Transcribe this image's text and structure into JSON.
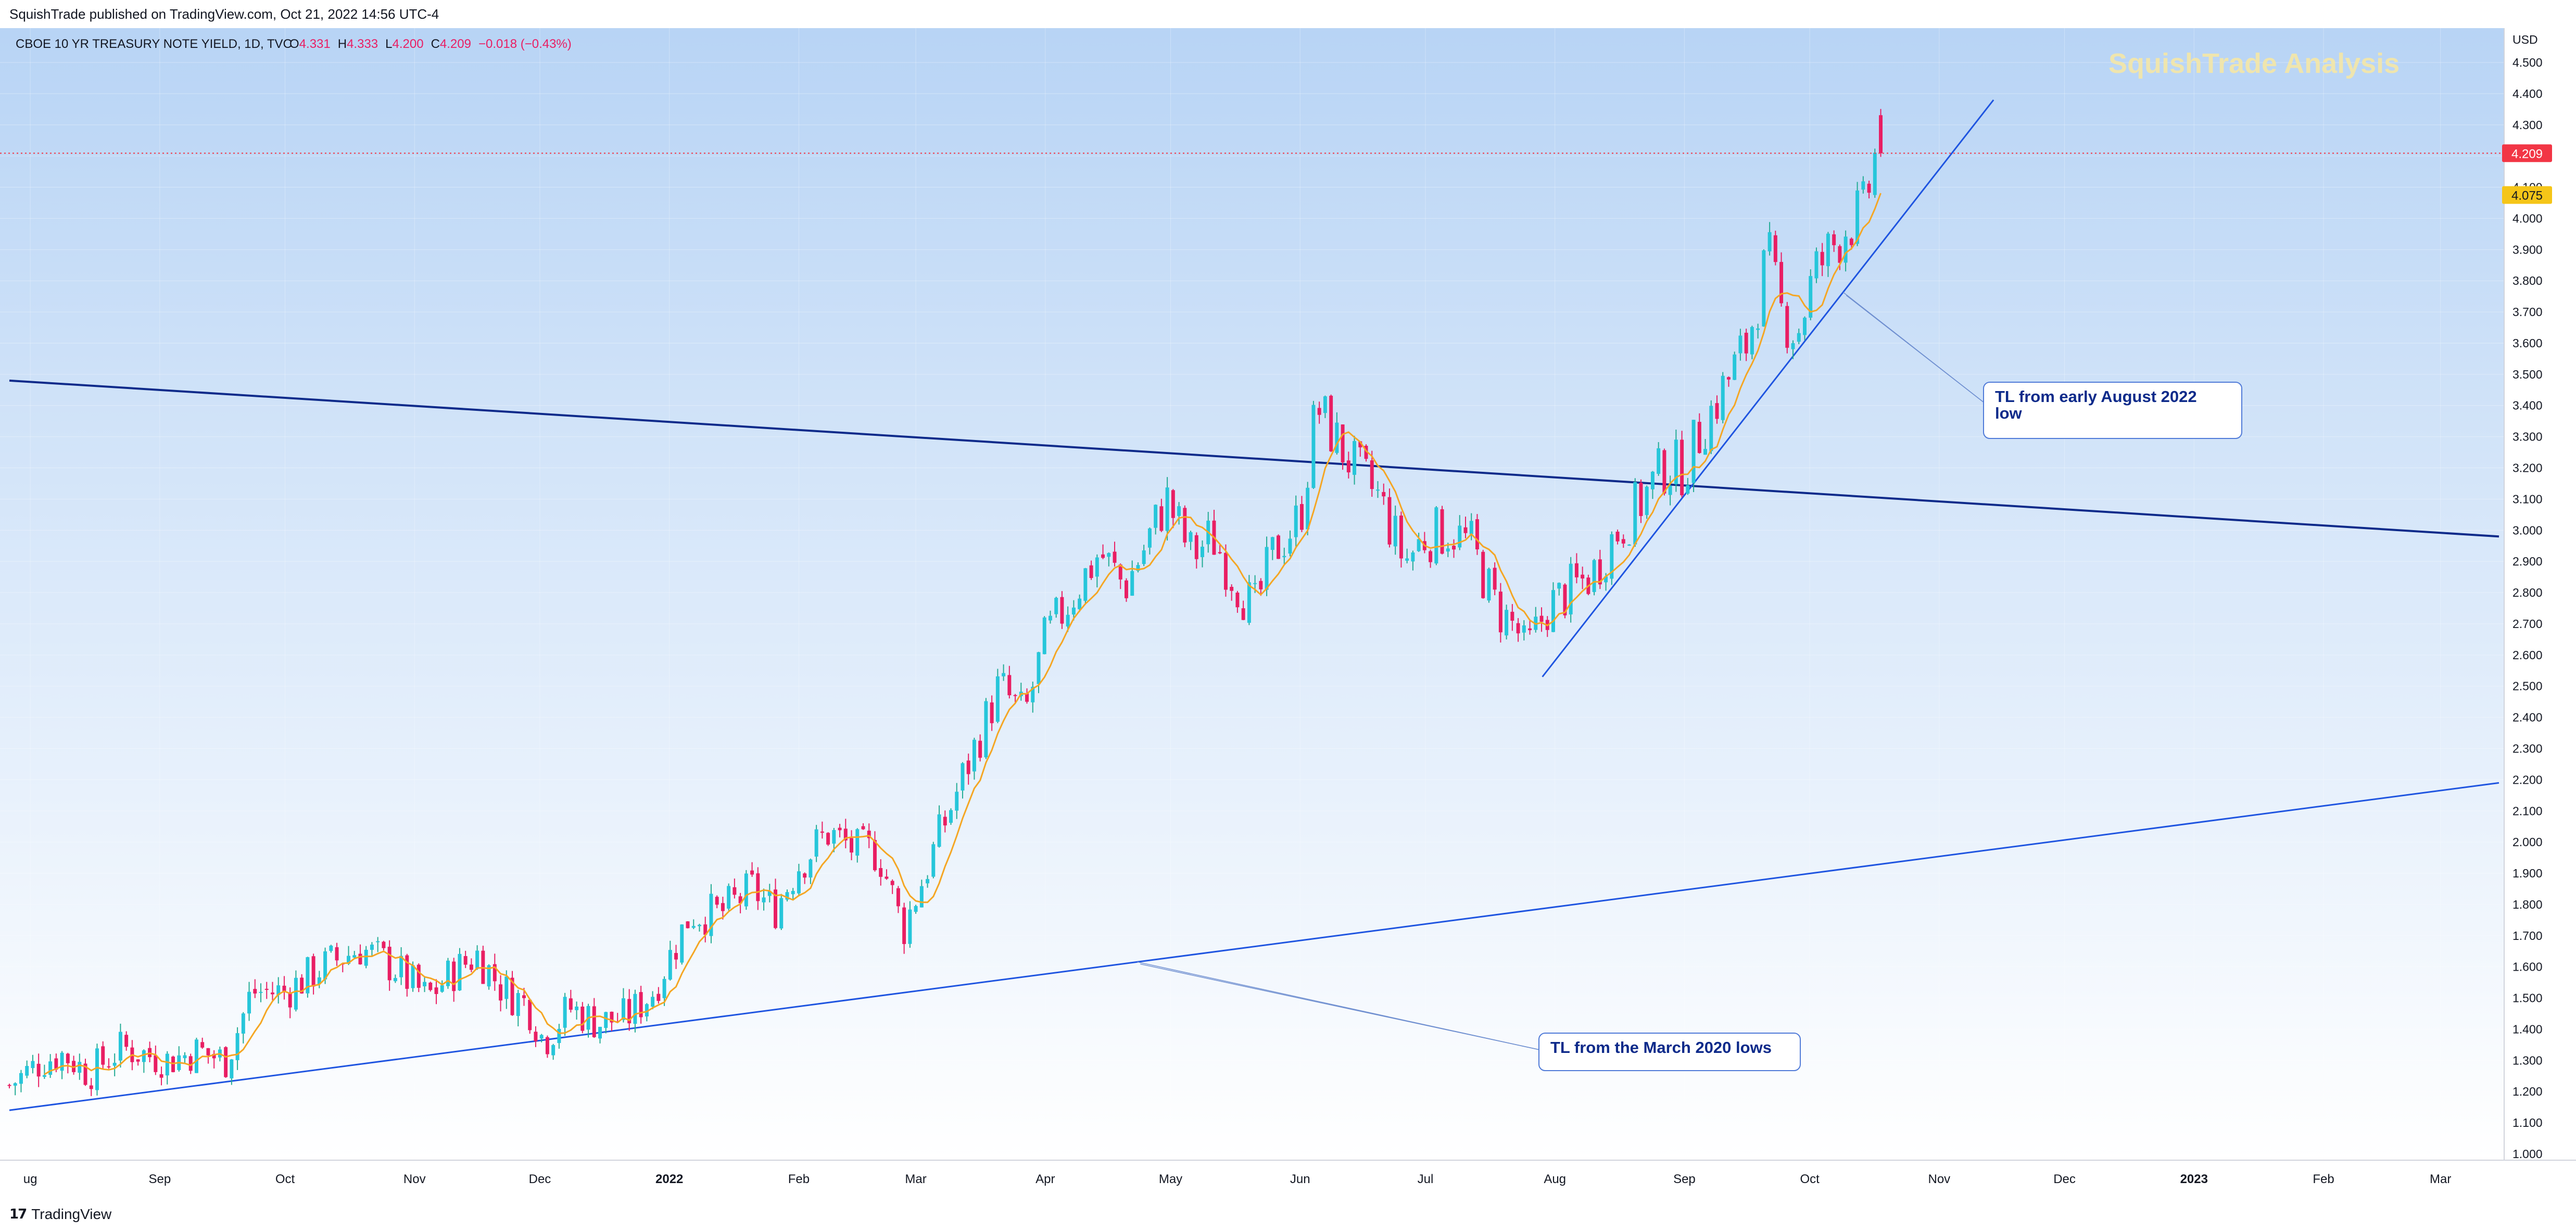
{
  "header": {
    "published": "SquishTrade published on TradingView.com, Oct 21, 2022 14:56 UTC-4"
  },
  "legend": {
    "symbol": "CBOE 10 YR TREASURY NOTE YIELD, 1D, TVC",
    "open_label": "O",
    "open": "4.331",
    "high_label": "H",
    "high": "4.333",
    "low_label": "L",
    "low": "4.200",
    "close_label": "C",
    "close": "4.209",
    "change": "−0.018 (−0.43%)"
  },
  "watermark": "SquishTrade Analysis",
  "annotations": {
    "tl_august": [
      "TL from early August 2022",
      "low"
    ],
    "tl_march": "TL from the March 2020 lows"
  },
  "footer": {
    "brand": "TradingView"
  },
  "colors": {
    "up": "#22ab94",
    "up_fill": "#26c6da",
    "down": "#e91e63",
    "ma": "#f5a623",
    "trendline": "#1e54e0",
    "trendline_dark": "#0d2a8a",
    "price_tag": "#f23645",
    "ma_tag": "#f5c518",
    "bg_top": "#b8d4f5",
    "bg_bottom": "#ffffff"
  },
  "chart_data": {
    "type": "candlestick",
    "title": "CBOE 10 YR TREASURY NOTE YIELD, 1D, TVC",
    "ylabel": "USD",
    "ylim": [
      1.0,
      4.55
    ],
    "y_ticks": [
      "1.000",
      "1.100",
      "1.200",
      "1.300",
      "1.400",
      "1.500",
      "1.600",
      "1.700",
      "1.800",
      "1.900",
      "2.000",
      "2.100",
      "2.200",
      "2.300",
      "2.400",
      "2.500",
      "2.600",
      "2.700",
      "2.800",
      "2.900",
      "3.000",
      "3.100",
      "3.200",
      "3.300",
      "3.400",
      "3.500",
      "3.600",
      "3.700",
      "3.800",
      "3.900",
      "4.000",
      "4.100",
      "4.200",
      "4.300",
      "4.400",
      "4.500"
    ],
    "x_labels": [
      "ug",
      "Sep",
      "Oct",
      "Nov",
      "Dec",
      "2022",
      "Feb",
      "Mar",
      "Apr",
      "May",
      "Jun",
      "Jul",
      "Aug",
      "Sep",
      "Oct",
      "Nov",
      "Dec",
      "2023",
      "Feb",
      "Mar"
    ],
    "x_label_days": [
      5,
      36,
      66,
      97,
      127,
      158,
      189,
      217,
      248,
      278,
      309,
      339,
      370,
      401,
      431,
      462,
      492,
      523,
      554,
      582
    ],
    "x_range": [
      0,
      596
    ],
    "last_price": 4.209,
    "ma_last": 4.075,
    "series_anchors": [
      {
        "d": 0,
        "v": 1.22
      },
      {
        "d": 8,
        "v": 1.3
      },
      {
        "d": 13,
        "v": 1.32
      },
      {
        "d": 19,
        "v": 1.26
      },
      {
        "d": 27,
        "v": 1.34
      },
      {
        "d": 38,
        "v": 1.3
      },
      {
        "d": 45,
        "v": 1.33
      },
      {
        "d": 52,
        "v": 1.3
      },
      {
        "d": 58,
        "v": 1.52
      },
      {
        "d": 66,
        "v": 1.52
      },
      {
        "d": 75,
        "v": 1.6
      },
      {
        "d": 84,
        "v": 1.66
      },
      {
        "d": 92,
        "v": 1.6
      },
      {
        "d": 100,
        "v": 1.5
      },
      {
        "d": 106,
        "v": 1.58
      },
      {
        "d": 112,
        "v": 1.64
      },
      {
        "d": 118,
        "v": 1.53
      },
      {
        "d": 124,
        "v": 1.48
      },
      {
        "d": 128,
        "v": 1.36
      },
      {
        "d": 134,
        "v": 1.47
      },
      {
        "d": 141,
        "v": 1.42
      },
      {
        "d": 148,
        "v": 1.44
      },
      {
        "d": 154,
        "v": 1.52
      },
      {
        "d": 158,
        "v": 1.63
      },
      {
        "d": 163,
        "v": 1.77
      },
      {
        "d": 170,
        "v": 1.77
      },
      {
        "d": 178,
        "v": 1.85
      },
      {
        "d": 183,
        "v": 1.78
      },
      {
        "d": 189,
        "v": 1.93
      },
      {
        "d": 196,
        "v": 2.03
      },
      {
        "d": 203,
        "v": 1.97
      },
      {
        "d": 208,
        "v": 1.97
      },
      {
        "d": 214,
        "v": 1.72
      },
      {
        "d": 218,
        "v": 1.86
      },
      {
        "d": 225,
        "v": 2.1
      },
      {
        "d": 231,
        "v": 2.3
      },
      {
        "d": 237,
        "v": 2.5
      },
      {
        "d": 243,
        "v": 2.4
      },
      {
        "d": 248,
        "v": 2.65
      },
      {
        "d": 254,
        "v": 2.78
      },
      {
        "d": 261,
        "v": 2.93
      },
      {
        "d": 267,
        "v": 2.82
      },
      {
        "d": 272,
        "v": 2.95
      },
      {
        "d": 277,
        "v": 3.1
      },
      {
        "d": 283,
        "v": 2.92
      },
      {
        "d": 288,
        "v": 2.98
      },
      {
        "d": 293,
        "v": 2.85
      },
      {
        "d": 298,
        "v": 2.74
      },
      {
        "d": 303,
        "v": 2.94
      },
      {
        "d": 309,
        "v": 3.04
      },
      {
        "d": 313,
        "v": 3.4
      },
      {
        "d": 318,
        "v": 3.28
      },
      {
        "d": 322,
        "v": 3.2
      },
      {
        "d": 328,
        "v": 3.1
      },
      {
        "d": 334,
        "v": 2.9
      },
      {
        "d": 339,
        "v": 2.98
      },
      {
        "d": 345,
        "v": 3.0
      },
      {
        "d": 350,
        "v": 2.95
      },
      {
        "d": 356,
        "v": 2.75
      },
      {
        "d": 361,
        "v": 2.68
      },
      {
        "d": 363,
        "v": 2.6
      },
      {
        "d": 368,
        "v": 2.75
      },
      {
        "d": 373,
        "v": 2.8
      },
      {
        "d": 379,
        "v": 2.86
      },
      {
        "d": 384,
        "v": 2.98
      },
      {
        "d": 390,
        "v": 3.08
      },
      {
        "d": 396,
        "v": 3.2
      },
      {
        "d": 401,
        "v": 3.2
      },
      {
        "d": 406,
        "v": 3.35
      },
      {
        "d": 411,
        "v": 3.47
      },
      {
        "d": 416,
        "v": 3.6
      },
      {
        "d": 421,
        "v": 3.88
      },
      {
        "d": 424,
        "v": 3.7
      },
      {
        "d": 428,
        "v": 3.63
      },
      {
        "d": 432,
        "v": 3.82
      },
      {
        "d": 436,
        "v": 3.9
      },
      {
        "d": 440,
        "v": 3.98
      },
      {
        "d": 444,
        "v": 4.02
      },
      {
        "d": 447,
        "v": 4.22
      },
      {
        "d": 449,
        "v": 4.209
      }
    ],
    "trendlines": [
      {
        "name": "TL from the March 2020 lows",
        "points": [
          [
            0,
            1.14
          ],
          [
            596,
            2.19
          ]
        ]
      },
      {
        "name": "descending TL",
        "points": [
          [
            0,
            3.48
          ],
          [
            596,
            2.98
          ]
        ]
      },
      {
        "name": "TL from early August 2022 low",
        "points": [
          [
            367,
            2.53
          ],
          [
            475,
            4.38
          ]
        ]
      }
    ]
  }
}
